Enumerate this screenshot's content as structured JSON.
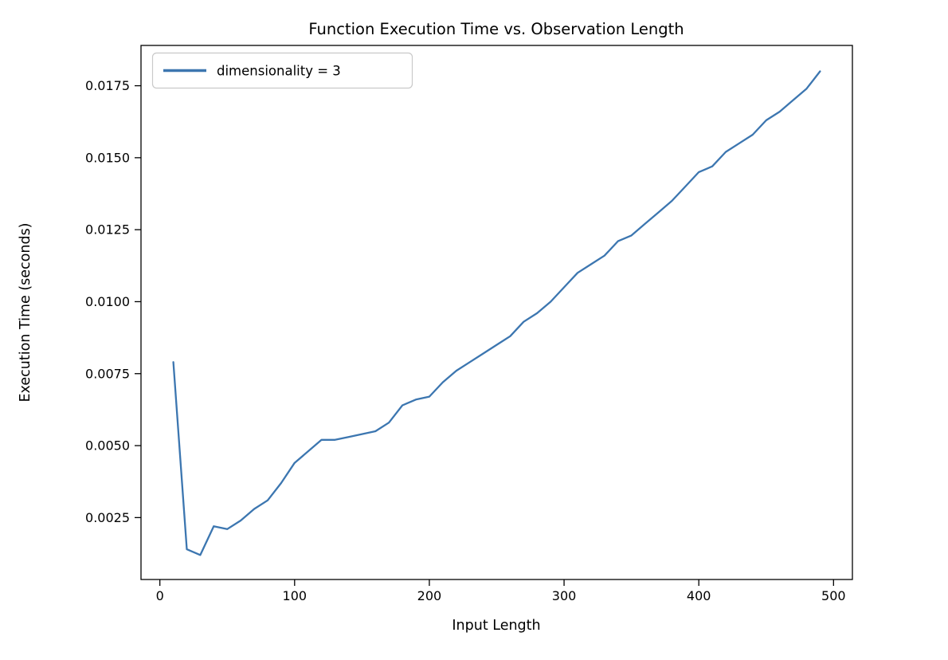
{
  "chart_data": {
    "type": "line",
    "title": "Function Execution Time vs. Observation Length",
    "xlabel": "Input Length",
    "ylabel": "Execution Time (seconds)",
    "grid": false,
    "legend": {
      "position": "upper-left",
      "entries": [
        {
          "label": "dimensionality = 3",
          "color": "#3c76b0"
        }
      ]
    },
    "xlim": [
      -14,
      514
    ],
    "ylim": [
      0.00035,
      0.0189
    ],
    "xticks": {
      "values": [
        0,
        100,
        200,
        300,
        400,
        500
      ],
      "labels": [
        "0",
        "100",
        "200",
        "300",
        "400",
        "500"
      ]
    },
    "yticks": {
      "values": [
        0.0025,
        0.005,
        0.0075,
        0.01,
        0.0125,
        0.015,
        0.0175
      ],
      "labels": [
        "0.0025",
        "0.0050",
        "0.0075",
        "0.0100",
        "0.0125",
        "0.0150",
        "0.0175"
      ]
    },
    "x": [
      10,
      20,
      30,
      40,
      50,
      60,
      70,
      80,
      90,
      100,
      110,
      120,
      130,
      140,
      150,
      160,
      170,
      180,
      190,
      200,
      210,
      220,
      230,
      240,
      250,
      260,
      270,
      280,
      290,
      300,
      310,
      320,
      330,
      340,
      350,
      360,
      370,
      380,
      390,
      400,
      410,
      420,
      430,
      440,
      450,
      460,
      470,
      480,
      490
    ],
    "series": [
      {
        "name": "dimensionality = 3",
        "color": "#3c76b0",
        "values": [
          0.0079,
          0.0014,
          0.0012,
          0.0022,
          0.0021,
          0.0024,
          0.0028,
          0.0031,
          0.0037,
          0.0044,
          0.0048,
          0.0052,
          0.0052,
          0.0053,
          0.0054,
          0.0055,
          0.0058,
          0.0064,
          0.0066,
          0.0067,
          0.0072,
          0.0076,
          0.0079,
          0.0082,
          0.0085,
          0.0088,
          0.0093,
          0.0096,
          0.01,
          0.0105,
          0.011,
          0.0113,
          0.0116,
          0.0121,
          0.0123,
          0.0127,
          0.0131,
          0.0135,
          0.014,
          0.0145,
          0.0147,
          0.0152,
          0.0155,
          0.0158,
          0.0163,
          0.0166,
          0.017,
          0.0174,
          0.018
        ]
      }
    ],
    "colors": {
      "line": "#3c76b0",
      "spine": "#000000",
      "legend_border": "#c9c9c9",
      "background": "#ffffff"
    }
  }
}
